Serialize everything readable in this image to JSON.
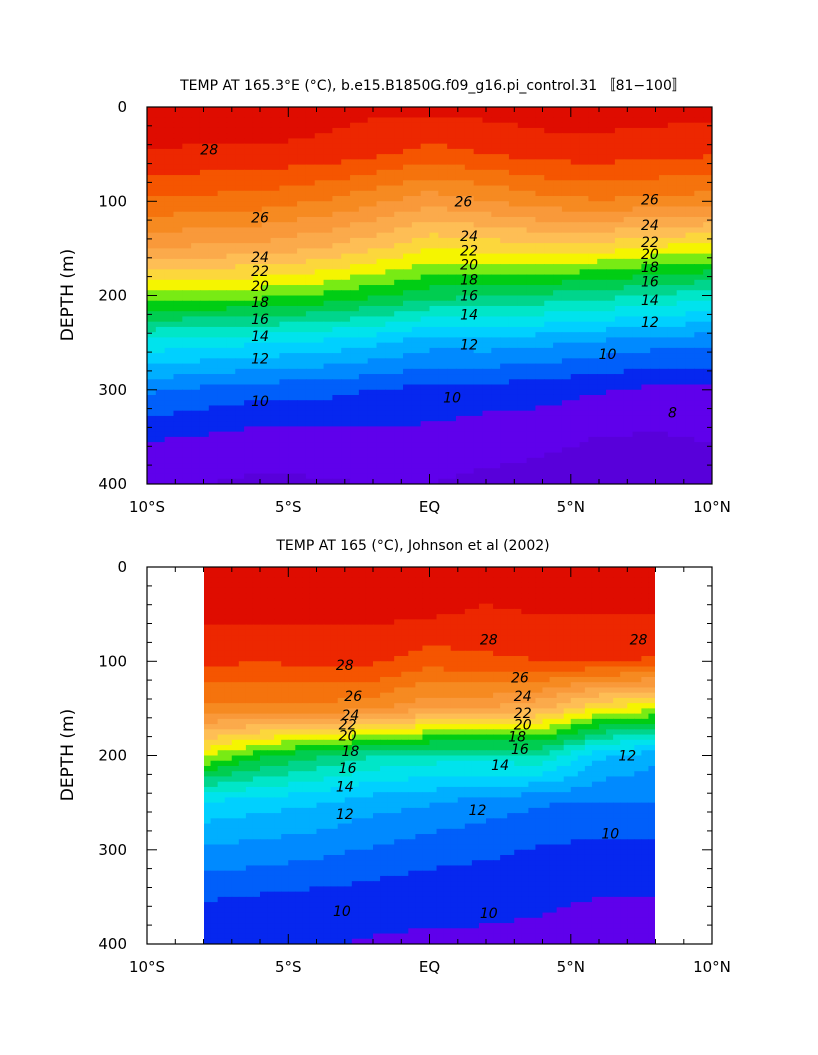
{
  "chart_data": [
    {
      "type": "heatmap",
      "title": "TEMP AT 165.3°E (°C), b.e15.B1850G.f09_g16.pi_control.31 〚81−100〛",
      "xlabel": "",
      "ylabel": "DEPTH (m)",
      "xlim": [
        -10,
        10
      ],
      "ylim": [
        400,
        0
      ],
      "x_ticks": [
        {
          "value": -10,
          "label": "10°S"
        },
        {
          "value": -5,
          "label": "5°S"
        },
        {
          "value": 0,
          "label": "EQ"
        },
        {
          "value": 5,
          "label": "5°N"
        },
        {
          "value": 10,
          "label": "10°N"
        }
      ],
      "y_ticks": [
        {
          "value": 0,
          "label": "0"
        },
        {
          "value": 100,
          "label": "100"
        },
        {
          "value": 200,
          "label": "200"
        },
        {
          "value": 300,
          "label": "300"
        },
        {
          "value": 400,
          "label": "400"
        }
      ],
      "x": [
        -10,
        -8,
        -6,
        -4,
        -2,
        0,
        2,
        4,
        6,
        8,
        10
      ],
      "y": [
        0,
        50,
        100,
        150,
        200,
        250,
        300,
        350,
        400
      ],
      "z": [
        [
          29.8,
          29.8,
          29.9,
          29.6,
          29.3,
          29.3,
          29.4,
          29.6,
          29.6,
          29.5,
          29.4
        ],
        [
          28.9,
          28.8,
          28.8,
          28.6,
          28.2,
          27.6,
          28.0,
          28.4,
          28.5,
          28.3,
          28.1
        ],
        [
          26.9,
          26.7,
          26.5,
          26.0,
          25.3,
          24.4,
          24.9,
          25.6,
          25.9,
          25.7,
          25.5
        ],
        [
          24.0,
          23.8,
          23.6,
          23.0,
          22.2,
          21.0,
          21.3,
          21.6,
          21.4,
          20.8,
          20.4
        ],
        [
          19.5,
          19.5,
          19.3,
          18.9,
          18.2,
          17.4,
          17.1,
          16.8,
          16.4,
          15.9,
          15.5
        ],
        [
          14.7,
          14.4,
          14.1,
          13.8,
          13.2,
          12.4,
          12.5,
          12.2,
          11.8,
          11.4,
          11.2
        ],
        [
          11.2,
          10.8,
          10.4,
          10.4,
          10.0,
          9.7,
          9.6,
          9.4,
          9.1,
          8.8,
          8.8
        ],
        [
          9.1,
          8.9,
          8.6,
          8.6,
          8.8,
          8.7,
          8.4,
          8.3,
          8.0,
          7.9,
          8.1
        ],
        [
          8.2,
          8.0,
          7.8,
          7.9,
          8.0,
          8.0,
          7.8,
          7.6,
          7.4,
          7.3,
          7.6
        ]
      ],
      "contour_interval": 1,
      "contour_labels": [
        {
          "x": -7.8,
          "y": 45,
          "value": "28"
        },
        {
          "x": -6.0,
          "y": 117,
          "value": "26"
        },
        {
          "x": 1.2,
          "y": 100,
          "value": "26"
        },
        {
          "x": 7.8,
          "y": 98,
          "value": "26"
        },
        {
          "x": -6.0,
          "y": 159,
          "value": "24"
        },
        {
          "x": 1.4,
          "y": 137,
          "value": "24"
        },
        {
          "x": 7.8,
          "y": 125,
          "value": "24"
        },
        {
          "x": -6.0,
          "y": 174,
          "value": "22"
        },
        {
          "x": 1.4,
          "y": 152,
          "value": "22"
        },
        {
          "x": 7.8,
          "y": 143,
          "value": "22"
        },
        {
          "x": -6.0,
          "y": 190,
          "value": "20"
        },
        {
          "x": 1.4,
          "y": 167,
          "value": "20"
        },
        {
          "x": 7.8,
          "y": 156,
          "value": "20"
        },
        {
          "x": -6.0,
          "y": 207,
          "value": "18"
        },
        {
          "x": 1.4,
          "y": 183,
          "value": "18"
        },
        {
          "x": 7.8,
          "y": 170,
          "value": "18"
        },
        {
          "x": -6.0,
          "y": 225,
          "value": "16"
        },
        {
          "x": 1.4,
          "y": 200,
          "value": "16"
        },
        {
          "x": 7.8,
          "y": 185,
          "value": "16"
        },
        {
          "x": -6.0,
          "y": 243,
          "value": "14"
        },
        {
          "x": 1.4,
          "y": 220,
          "value": "14"
        },
        {
          "x": 7.8,
          "y": 205,
          "value": "14"
        },
        {
          "x": -6.0,
          "y": 267,
          "value": "12"
        },
        {
          "x": 1.4,
          "y": 252,
          "value": "12"
        },
        {
          "x": 7.8,
          "y": 228,
          "value": "12"
        },
        {
          "x": -6.0,
          "y": 312,
          "value": "10"
        },
        {
          "x": 0.8,
          "y": 308,
          "value": "10"
        },
        {
          "x": 6.3,
          "y": 262,
          "value": "10"
        },
        {
          "x": 8.6,
          "y": 324,
          "value": "8"
        }
      ]
    },
    {
      "type": "heatmap",
      "title": "TEMP AT 165 (°C), Johnson et al (2002)",
      "xlabel": "",
      "ylabel": "DEPTH (m)",
      "xlim": [
        -10,
        10
      ],
      "ylim": [
        400,
        0
      ],
      "x_ticks": [
        {
          "value": -10,
          "label": "10°S"
        },
        {
          "value": -5,
          "label": "5°S"
        },
        {
          "value": 0,
          "label": "EQ"
        },
        {
          "value": 5,
          "label": "5°N"
        },
        {
          "value": 10,
          "label": "10°N"
        }
      ],
      "y_ticks": [
        {
          "value": 0,
          "label": "0"
        },
        {
          "value": 100,
          "label": "100"
        },
        {
          "value": 200,
          "label": "200"
        },
        {
          "value": 300,
          "label": "300"
        },
        {
          "value": 400,
          "label": "400"
        }
      ],
      "data_xlim": [
        -8,
        8
      ],
      "x": [
        -8,
        -6,
        -4,
        -2,
        0,
        2,
        4,
        6,
        8
      ],
      "y": [
        0,
        50,
        100,
        150,
        200,
        250,
        300,
        350,
        400
      ],
      "z": [
        [
          29.7,
          29.7,
          29.6,
          29.7,
          29.7,
          29.4,
          29.6,
          29.6,
          29.6
        ],
        [
          29.3,
          29.3,
          29.3,
          29.3,
          29.1,
          28.9,
          29.0,
          29.0,
          29.0
        ],
        [
          28.2,
          28.1,
          28.2,
          28.2,
          27.5,
          27.8,
          28.0,
          28.1,
          27.9
        ],
        [
          25.7,
          25.6,
          25.7,
          25.3,
          24.1,
          24.0,
          23.1,
          21.0,
          20.2
        ],
        [
          20.2,
          18.3,
          17.2,
          16.1,
          15.6,
          15.6,
          15.9,
          13.2,
          12.3
        ],
        [
          13.8,
          13.4,
          13.1,
          12.4,
          12.1,
          11.5,
          11.1,
          10.9,
          11.0
        ],
        [
          11.9,
          11.6,
          11.3,
          10.9,
          10.4,
          10.2,
          9.9,
          9.7,
          9.7
        ],
        [
          10.1,
          9.9,
          9.7,
          9.5,
          9.4,
          9.3,
          9.2,
          9.0,
          9.0
        ],
        [
          9.3,
          9.2,
          9.1,
          8.9,
          8.8,
          8.8,
          8.7,
          8.4,
          8.4
        ]
      ],
      "contour_interval": 1,
      "contour_labels": [
        {
          "x": -3.0,
          "y": 104,
          "value": "28"
        },
        {
          "x": 2.1,
          "y": 77,
          "value": "28"
        },
        {
          "x": 7.4,
          "y": 77,
          "value": "28"
        },
        {
          "x": -2.7,
          "y": 137,
          "value": "26"
        },
        {
          "x": 3.2,
          "y": 117,
          "value": "26"
        },
        {
          "x": -2.8,
          "y": 157,
          "value": "24"
        },
        {
          "x": 3.3,
          "y": 137,
          "value": "24"
        },
        {
          "x": -2.9,
          "y": 167,
          "value": "22"
        },
        {
          "x": 3.3,
          "y": 155,
          "value": "22"
        },
        {
          "x": -2.9,
          "y": 179,
          "value": "20"
        },
        {
          "x": 3.3,
          "y": 167,
          "value": "20"
        },
        {
          "x": -2.8,
          "y": 195,
          "value": "18"
        },
        {
          "x": 3.1,
          "y": 180,
          "value": "18"
        },
        {
          "x": -2.9,
          "y": 213,
          "value": "16"
        },
        {
          "x": 3.2,
          "y": 193,
          "value": "16"
        },
        {
          "x": -3.0,
          "y": 233,
          "value": "14"
        },
        {
          "x": 2.5,
          "y": 210,
          "value": "14"
        },
        {
          "x": 7.0,
          "y": 200,
          "value": "12"
        },
        {
          "x": -3.0,
          "y": 262,
          "value": "12"
        },
        {
          "x": 1.7,
          "y": 258,
          "value": "12"
        },
        {
          "x": 6.4,
          "y": 283,
          "value": "10"
        },
        {
          "x": -3.1,
          "y": 365,
          "value": "10"
        },
        {
          "x": 2.1,
          "y": 367,
          "value": "10"
        }
      ]
    }
  ]
}
